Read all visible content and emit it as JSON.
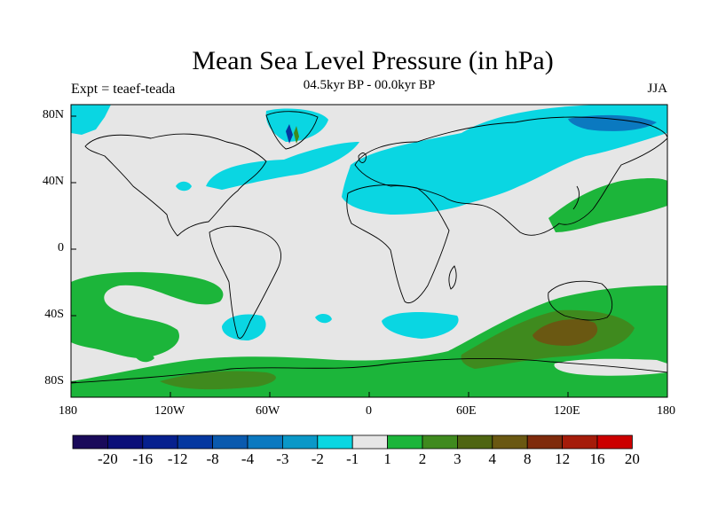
{
  "title": "Mean Sea Level Pressure (in hPa)",
  "subtitle": "04.5kyr BP - 00.0kyr BP",
  "experiment_label": "Expt = teaef-teada",
  "season": "JJA",
  "axes": {
    "x_ticks": [
      "180",
      "120W",
      "60W",
      "0",
      "60E",
      "120E",
      "180"
    ],
    "y_ticks": [
      "80N",
      "40N",
      "0",
      "40S",
      "80S"
    ]
  },
  "colorbar": {
    "labels": [
      "-20",
      "-16",
      "-12",
      "-8",
      "-4",
      "-3",
      "-2",
      "-1",
      "1",
      "2",
      "3",
      "4",
      "8",
      "12",
      "16",
      "20"
    ],
    "colors": [
      "#1a0a5a",
      "#0b0f78",
      "#06208e",
      "#0538a0",
      "#0a5aae",
      "#0b79c0",
      "#0a98c8",
      "#0ad6e2",
      "#e6e6e6",
      "#1cb53a",
      "#3f8a1e",
      "#4e6511",
      "#6a5812",
      "#7f2b0c",
      "#a51c0a",
      "#cc0000"
    ]
  },
  "palette": {
    "neutral": "#e6e6e6",
    "cyan": "#0ad6e2",
    "blue": "#0b79c0",
    "green": "#1cb53a",
    "darkgreen": "#3f8a1e",
    "olive": "#6a5812"
  }
}
